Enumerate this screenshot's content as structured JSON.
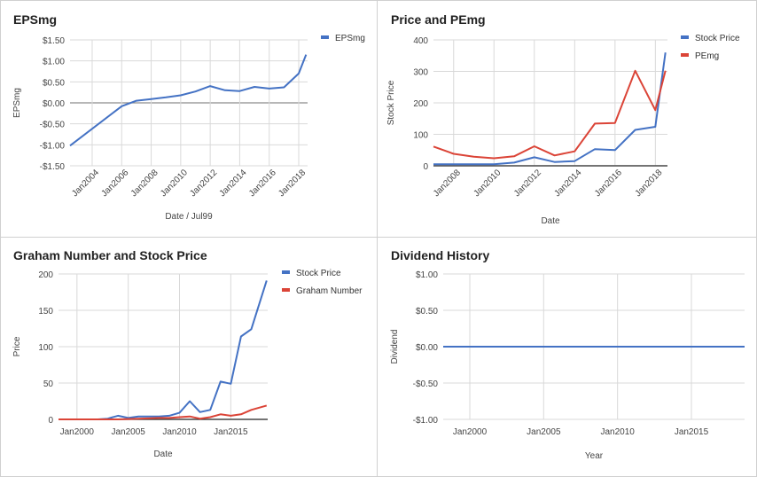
{
  "chart_data": [
    {
      "type": "line",
      "title": "EPSmg",
      "xlabel": "Date / Jul99",
      "ylabel": "EPSmg",
      "xlim": [
        2002.5,
        2018.6
      ],
      "ylim": [
        -1.5,
        1.5
      ],
      "grid": true,
      "legend_position": "right",
      "x_ticks": [
        2004,
        2006,
        2008,
        2010,
        2012,
        2014,
        2016,
        2018
      ],
      "x_tick_labels": [
        "Jan2004",
        "Jan2006",
        "Jan2008",
        "Jan2010",
        "Jan2012",
        "Jan2014",
        "Jan2016",
        "Jan2018"
      ],
      "x_tick_rotated": true,
      "y_ticks": [
        -1.5,
        -1.0,
        -0.5,
        0.0,
        0.5,
        1.0,
        1.5
      ],
      "y_tick_labels": [
        "-$1.50",
        "-$1.00",
        "-$0.50",
        "$0.00",
        "$0.50",
        "$1.00",
        "$1.50"
      ],
      "series": [
        {
          "name": "EPSmg",
          "color": "#4472c4",
          "x": [
            2002.5,
            2006.0,
            2007.0,
            2008.0,
            2009.0,
            2010.0,
            2011.0,
            2012.0,
            2013.0,
            2014.0,
            2015.0,
            2016.0,
            2017.0,
            2018.0,
            2018.5
          ],
          "y": [
            -1.02,
            -0.08,
            0.05,
            0.09,
            0.13,
            0.18,
            0.27,
            0.4,
            0.3,
            0.28,
            0.38,
            0.34,
            0.37,
            0.7,
            1.15
          ]
        }
      ]
    },
    {
      "type": "line",
      "title": "Price and PEmg",
      "xlabel": "Date",
      "ylabel": "Stock Price",
      "xlim": [
        2007.0,
        2018.6
      ],
      "ylim": [
        0,
        400
      ],
      "grid": true,
      "legend_position": "right",
      "x_ticks": [
        2008,
        2010,
        2012,
        2014,
        2016,
        2018
      ],
      "x_tick_labels": [
        "Jan2008",
        "Jan2010",
        "Jan2012",
        "Jan2014",
        "Jan2016",
        "Jan2018"
      ],
      "x_tick_rotated": true,
      "y_ticks": [
        0,
        100,
        200,
        300,
        400
      ],
      "y_tick_labels": [
        "0",
        "100",
        "200",
        "300",
        "400"
      ],
      "series": [
        {
          "name": "Stock Price",
          "color": "#4472c4",
          "x": [
            2007.0,
            2008.0,
            2009.0,
            2010.0,
            2011.0,
            2012.0,
            2013.0,
            2014.0,
            2015.0,
            2016.0,
            2017.0,
            2018.0,
            2018.5
          ],
          "y": [
            5,
            5,
            5,
            5,
            10,
            27,
            12,
            15,
            53,
            50,
            114,
            124,
            360
          ]
        },
        {
          "name": "PEmg",
          "color": "#db4437",
          "x": [
            2007.0,
            2008.0,
            2009.0,
            2010.0,
            2011.0,
            2012.0,
            2013.0,
            2014.0,
            2015.0,
            2016.0,
            2017.0,
            2018.0,
            2018.5
          ],
          "y": [
            61,
            38,
            29,
            24,
            30,
            62,
            33,
            46,
            134,
            136,
            302,
            177,
            302
          ]
        }
      ]
    },
    {
      "type": "line",
      "title": "Graham Number and Stock Price",
      "xlabel": "Date",
      "ylabel": "Price",
      "xlim": [
        1998.2,
        2018.6
      ],
      "ylim": [
        0,
        200
      ],
      "grid": true,
      "legend_position": "right",
      "x_ticks": [
        2000,
        2005,
        2010,
        2015
      ],
      "x_tick_labels": [
        "Jan2000",
        "Jan2005",
        "Jan2010",
        "Jan2015"
      ],
      "x_tick_rotated": false,
      "y_ticks": [
        0,
        50,
        100,
        150,
        200
      ],
      "y_tick_labels": [
        "0",
        "50",
        "100",
        "150",
        "200"
      ],
      "series": [
        {
          "name": "Stock Price",
          "color": "#4472c4",
          "x": [
            1998.2,
            2001.0,
            2002.0,
            2003.0,
            2004.0,
            2005.0,
            2006.0,
            2007.0,
            2008.0,
            2009.0,
            2010.0,
            2011.0,
            2012.0,
            2013.0,
            2014.0,
            2015.0,
            2016.0,
            2017.0,
            2018.5
          ],
          "y": [
            0,
            0,
            0,
            1,
            5,
            2,
            4,
            4,
            4,
            5,
            9,
            25,
            10,
            13,
            52,
            49,
            114,
            124,
            191
          ]
        },
        {
          "name": "Graham Number",
          "color": "#db4437",
          "x": [
            1998.2,
            2004.0,
            2006.0,
            2008.0,
            2009.0,
            2010.0,
            2011.0,
            2012.0,
            2013.0,
            2014.0,
            2015.0,
            2016.0,
            2017.0,
            2018.5
          ],
          "y": [
            0,
            0,
            1,
            2,
            2,
            3,
            4,
            1,
            3,
            7,
            5,
            7,
            13,
            19
          ]
        }
      ]
    },
    {
      "type": "line",
      "title": "Dividend History",
      "xlabel": "Year",
      "ylabel": "Dividend",
      "xlim": [
        1998.2,
        2018.6
      ],
      "ylim": [
        -1.0,
        1.0
      ],
      "grid": true,
      "legend_position": "none",
      "x_ticks": [
        2000,
        2005,
        2010,
        2015
      ],
      "x_tick_labels": [
        "Jan2000",
        "Jan2005",
        "Jan2010",
        "Jan2015"
      ],
      "x_tick_rotated": false,
      "y_ticks": [
        -1.0,
        -0.5,
        0.0,
        0.5,
        1.0
      ],
      "y_tick_labels": [
        "-$1.00",
        "-$0.50",
        "$0.00",
        "$0.50",
        "$1.00"
      ],
      "series": [
        {
          "color": "#4472c4",
          "x": [
            1998.2,
            2018.6
          ],
          "y": [
            0,
            0
          ]
        }
      ]
    }
  ]
}
